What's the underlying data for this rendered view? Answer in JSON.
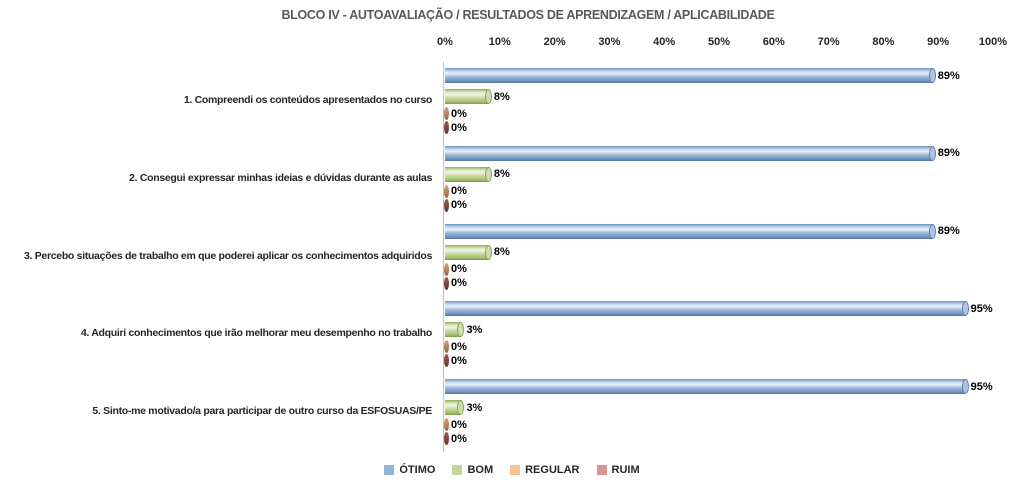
{
  "title": "BLOCO IV - AUTOAVALIAÇÃO / RESULTADOS DE APRENDIZAGEM / APLICABILIDADE",
  "chart_data": {
    "type": "bar",
    "orientation": "horizontal",
    "title": "BLOCO IV - AUTOAVALIAÇÃO / RESULTADOS DE APRENDIZAGEM / APLICABILIDADE",
    "categories": [
      "1. Compreendi os conteúdos apresentados no curso",
      "2. Consegui expressar minhas ideias e dúvidas durante as aulas",
      "3. Percebo situações de trabalho em que poderei aplicar os conhecimentos adquiridos",
      "4. Adquiri conhecimentos que irão melhorar meu desempenho no trabalho",
      "5. Sinto-me motivado/a para participar de outro curso da ESFOSUAS/PE"
    ],
    "series": [
      {
        "name": "ÓTIMO",
        "color": "#95B3D7",
        "values": [
          89,
          89,
          89,
          95,
          95
        ]
      },
      {
        "name": "BOM",
        "color": "#C3D69B",
        "values": [
          8,
          8,
          8,
          3,
          3
        ]
      },
      {
        "name": "REGULAR",
        "color": "#FAC090",
        "values": [
          0,
          0,
          0,
          0,
          0
        ]
      },
      {
        "name": "RUIM",
        "color": "#D99694",
        "values": [
          0,
          0,
          0,
          0,
          0
        ]
      }
    ],
    "value_labels": [
      [
        "89%",
        "8%",
        "0%",
        "0%"
      ],
      [
        "89%",
        "8%",
        "0%",
        "0%"
      ],
      [
        "89%",
        "8%",
        "0%",
        "0%"
      ],
      [
        "95%",
        "3%",
        "0%",
        "0%"
      ],
      [
        "95%",
        "3%",
        "0%",
        "0%"
      ]
    ],
    "xlim": [
      0,
      100
    ],
    "x_ticks": [
      "0%",
      "10%",
      "20%",
      "30%",
      "40%",
      "50%",
      "60%",
      "70%",
      "80%",
      "90%",
      "100%"
    ],
    "grid": false,
    "legend_position": "bottom",
    "legend": [
      "ÓTIMO",
      "BOM",
      "REGULAR",
      "RUIM"
    ]
  }
}
